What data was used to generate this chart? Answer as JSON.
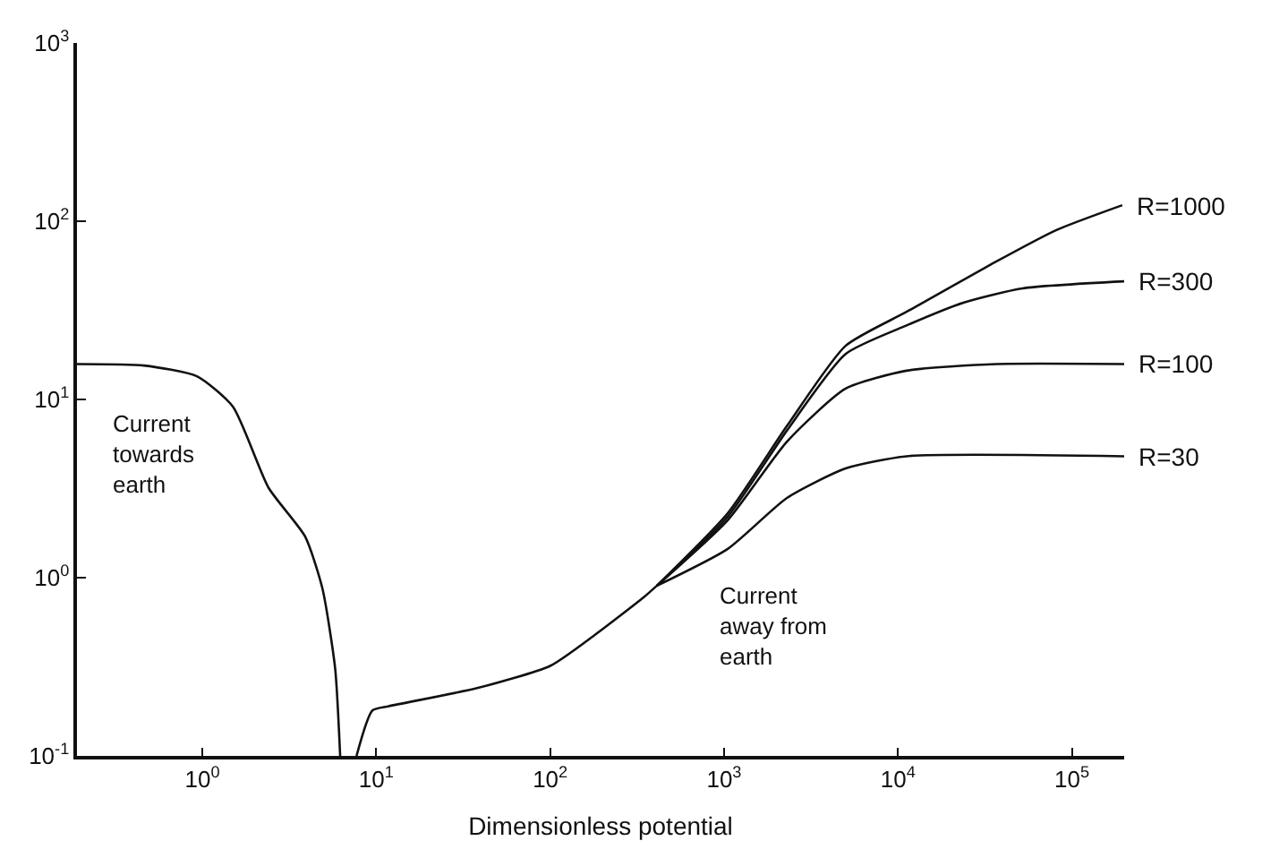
{
  "chart_data": {
    "type": "line",
    "xlabel": "Dimensionless potential",
    "log": "xy",
    "legend": false,
    "marker": "none",
    "line_style": "solid",
    "xlim": [
      0.19,
      200000
    ],
    "ylim": [
      0.1,
      1000
    ],
    "xticks": [
      {
        "value": 1,
        "label": "10$^{0}$"
      },
      {
        "value": 10,
        "label": "10$^{1}$"
      },
      {
        "value": 100,
        "label": "10$^{2}$"
      },
      {
        "value": 1000,
        "label": "10$^{3}$"
      },
      {
        "value": 10000,
        "label": "10$^{4}$"
      },
      {
        "value": 100000,
        "label": "10$^{5}$"
      }
    ],
    "yticks": [
      {
        "value": 0.1,
        "label": "10$^{-1}$"
      },
      {
        "value": 1,
        "label": "10$^{0}$"
      },
      {
        "value": 10,
        "label": "10$^{1}$"
      },
      {
        "value": 100,
        "label": "10$^{2}$"
      },
      {
        "value": 1000,
        "label": "10$^{3}$"
      }
    ],
    "annotations": [
      "Current\ntowards\nearth",
      "Current\naway from\nearth"
    ],
    "series": [
      {
        "color": "#111111",
        "x": [
          0.19,
          0.46,
          0.93,
          1.5,
          2.4,
          3.9,
          4.9,
          5.8,
          6.2
        ],
        "values": [
          15.8,
          15.5,
          13.5,
          9.1,
          3.2,
          1.7,
          0.87,
          0.31,
          0.1
        ]
      },
      {
        "color": "#111111",
        "x": [
          7.7,
          9.5,
          11.8,
          38,
          100,
          182,
          347,
          410
        ],
        "values": [
          0.1,
          0.18,
          0.19,
          0.24,
          0.32,
          0.48,
          0.78,
          0.9
        ]
      },
      {
        "name": "R=30",
        "color": "#111111",
        "x": [
          410,
          1050,
          2300,
          5000,
          11200,
          200000
        ],
        "values": [
          0.9,
          1.45,
          2.8,
          4.1,
          4.8,
          4.8
        ]
      },
      {
        "name": "R=100",
        "color": "#111111",
        "x": [
          410,
          1050,
          2300,
          5000,
          11200,
          37000,
          200000
        ],
        "values": [
          0.9,
          2.1,
          5.8,
          11.5,
          14.5,
          15.8,
          15.8
        ]
      },
      {
        "name": "R=300",
        "color": "#111111",
        "x": [
          410,
          1050,
          2300,
          5000,
          11200,
          24000,
          52000,
          200000
        ],
        "values": [
          0.9,
          2.2,
          6.7,
          18,
          26,
          35,
          42,
          46
        ]
      },
      {
        "name": "R=1000",
        "color": "#111111",
        "x": [
          410,
          1050,
          2300,
          5000,
          11200,
          34000,
          81000,
          195000
        ],
        "values": [
          0.9,
          2.3,
          7.1,
          20,
          31,
          57,
          89,
          123
        ]
      }
    ]
  }
}
